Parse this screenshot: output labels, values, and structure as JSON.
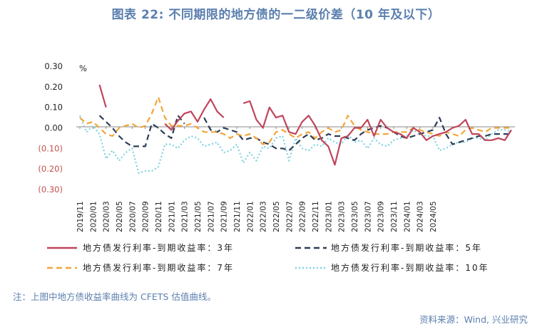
{
  "title": "图表 22: 不同期限的地方债的一二级价差（10 年及以下）",
  "note": "注：上图中地方债收益率曲线为 CFETS 估值曲线。",
  "source": "资料来源：Wind, 兴业研究",
  "colors": {
    "title": "#5b7fae",
    "negative_tick": "#c0504d",
    "s3": "#c0455b",
    "s5": "#2d3e57",
    "s7": "#f2a63a",
    "s10": "#7fd3e0"
  },
  "chart_data": {
    "type": "line",
    "title": "图表 22: 不同期限的地方债的一二级价差（10 年及以下）",
    "unit_label": "%",
    "ylim": [
      -0.3,
      0.3
    ],
    "yticks": [
      {
        "v": 0.3,
        "label": "0.30"
      },
      {
        "v": 0.2,
        "label": "0.20"
      },
      {
        "v": 0.1,
        "label": "0.10"
      },
      {
        "v": 0.0,
        "label": "0.00"
      },
      {
        "v": -0.1,
        "label": "(0.10)"
      },
      {
        "v": -0.2,
        "label": "(0.20)"
      },
      {
        "v": -0.3,
        "label": "(0.30)"
      }
    ],
    "x_start": "2019/11",
    "x_end": "2024/06",
    "x_tick_labels": [
      "2019/11",
      "2020/01",
      "2020/03",
      "2020/05",
      "2020/07",
      "2020/09",
      "2020/11",
      "2021/01",
      "2021/03",
      "2021/05",
      "2021/07",
      "2021/09",
      "2021/11",
      "2022/01",
      "2022/03",
      "2022/05",
      "2022/07",
      "2022/09",
      "2022/11",
      "2023/01",
      "2023/03",
      "2023/05",
      "2023/07",
      "2023/09",
      "2023/11",
      "2024/01",
      "2024/03",
      "2024/05"
    ],
    "series": [
      {
        "name": "地方债发行利率-到期收益率：3年",
        "style": "solid",
        "values": [
          null,
          null,
          null,
          0.21,
          0.1,
          null,
          null,
          null,
          null,
          null,
          null,
          null,
          null,
          0.02,
          -0.01,
          0.035,
          0.07,
          0.08,
          0.03,
          0.09,
          0.14,
          0.08,
          0.05,
          null,
          null,
          0.12,
          0.13,
          0.04,
          0.0,
          0.1,
          0.05,
          0.06,
          -0.02,
          -0.03,
          0.03,
          0.06,
          0.01,
          -0.06,
          -0.09,
          -0.18,
          -0.05,
          -0.04,
          0.0,
          0.0,
          0.04,
          -0.04,
          0.04,
          0.0,
          -0.02,
          -0.03,
          -0.05,
          0.0,
          -0.02,
          -0.06,
          -0.04,
          -0.03,
          -0.02,
          0.0,
          0.01,
          0.04,
          -0.03,
          -0.03,
          -0.06,
          -0.06,
          -0.05,
          -0.06,
          -0.01
        ]
      },
      {
        "name": "地方债发行利率-到期收益率：5年",
        "style": "dash",
        "values": [
          null,
          null,
          null,
          0.06,
          0.03,
          0.0,
          -0.04,
          -0.07,
          -0.09,
          -0.09,
          -0.09,
          0.02,
          0.0,
          -0.03,
          -0.05,
          0.06,
          0.02,
          null,
          null,
          0.05,
          -0.01,
          -0.02,
          0.0,
          -0.01,
          -0.02,
          -0.06,
          -0.05,
          -0.05,
          -0.07,
          -0.08,
          -0.1,
          -0.1,
          -0.11,
          -0.08,
          -0.05,
          -0.03,
          -0.06,
          -0.05,
          -0.03,
          -0.04,
          -0.04,
          -0.05,
          -0.06,
          -0.03,
          -0.01,
          0.0,
          0.01,
          0.0,
          -0.02,
          -0.04,
          -0.05,
          -0.04,
          -0.03,
          -0.02,
          -0.01,
          0.05,
          -0.03,
          -0.08,
          -0.07,
          -0.06,
          -0.05,
          -0.04,
          -0.04,
          -0.03,
          -0.03,
          -0.03,
          -0.03
        ]
      },
      {
        "name": "地方债发行利率-到期收益率：7年",
        "style": "dash",
        "values": [
          0.05,
          0.02,
          0.03,
          0.0,
          -0.03,
          -0.04,
          0.0,
          0.01,
          0.02,
          0.0,
          0.01,
          0.07,
          0.15,
          0.05,
          0.01,
          0.01,
          0.01,
          0.02,
          0.0,
          -0.02,
          -0.02,
          -0.02,
          -0.03,
          -0.05,
          -0.03,
          -0.04,
          -0.03,
          -0.05,
          -0.08,
          -0.07,
          -0.02,
          -0.01,
          -0.03,
          -0.05,
          -0.03,
          -0.02,
          -0.05,
          -0.02,
          0.0,
          -0.02,
          -0.01,
          0.06,
          0.01,
          -0.01,
          -0.02,
          -0.03,
          -0.03,
          -0.03,
          -0.02,
          -0.02,
          -0.02,
          0.0,
          -0.01,
          -0.02,
          -0.03,
          -0.04,
          -0.02,
          -0.03,
          -0.04,
          -0.01,
          0.0,
          -0.01,
          -0.02,
          0.0,
          0.0,
          0.0,
          0.0
        ]
      },
      {
        "name": "地方债发行利率-到期收益率：10年",
        "style": "dot",
        "values": [
          0.06,
          -0.02,
          0.01,
          -0.03,
          -0.15,
          -0.11,
          -0.16,
          -0.12,
          -0.1,
          -0.22,
          -0.21,
          -0.21,
          -0.19,
          -0.08,
          -0.08,
          -0.1,
          -0.06,
          -0.04,
          -0.05,
          -0.09,
          -0.08,
          -0.07,
          -0.12,
          -0.11,
          -0.08,
          -0.17,
          -0.12,
          -0.16,
          -0.09,
          -0.1,
          -0.05,
          -0.04,
          -0.16,
          -0.05,
          -0.1,
          -0.11,
          -0.08,
          -0.09,
          -0.05,
          -0.07,
          -0.08,
          -0.03,
          -0.07,
          -0.06,
          -0.1,
          -0.05,
          -0.08,
          -0.09,
          -0.06,
          -0.05,
          -0.04,
          -0.01,
          -0.03,
          -0.04,
          -0.04,
          -0.11,
          -0.1,
          -0.08,
          -0.07,
          -0.07,
          -0.05,
          -0.05,
          -0.06,
          -0.03,
          -0.01,
          -0.01,
          -0.02
        ]
      }
    ],
    "legend_position": "bottom"
  }
}
